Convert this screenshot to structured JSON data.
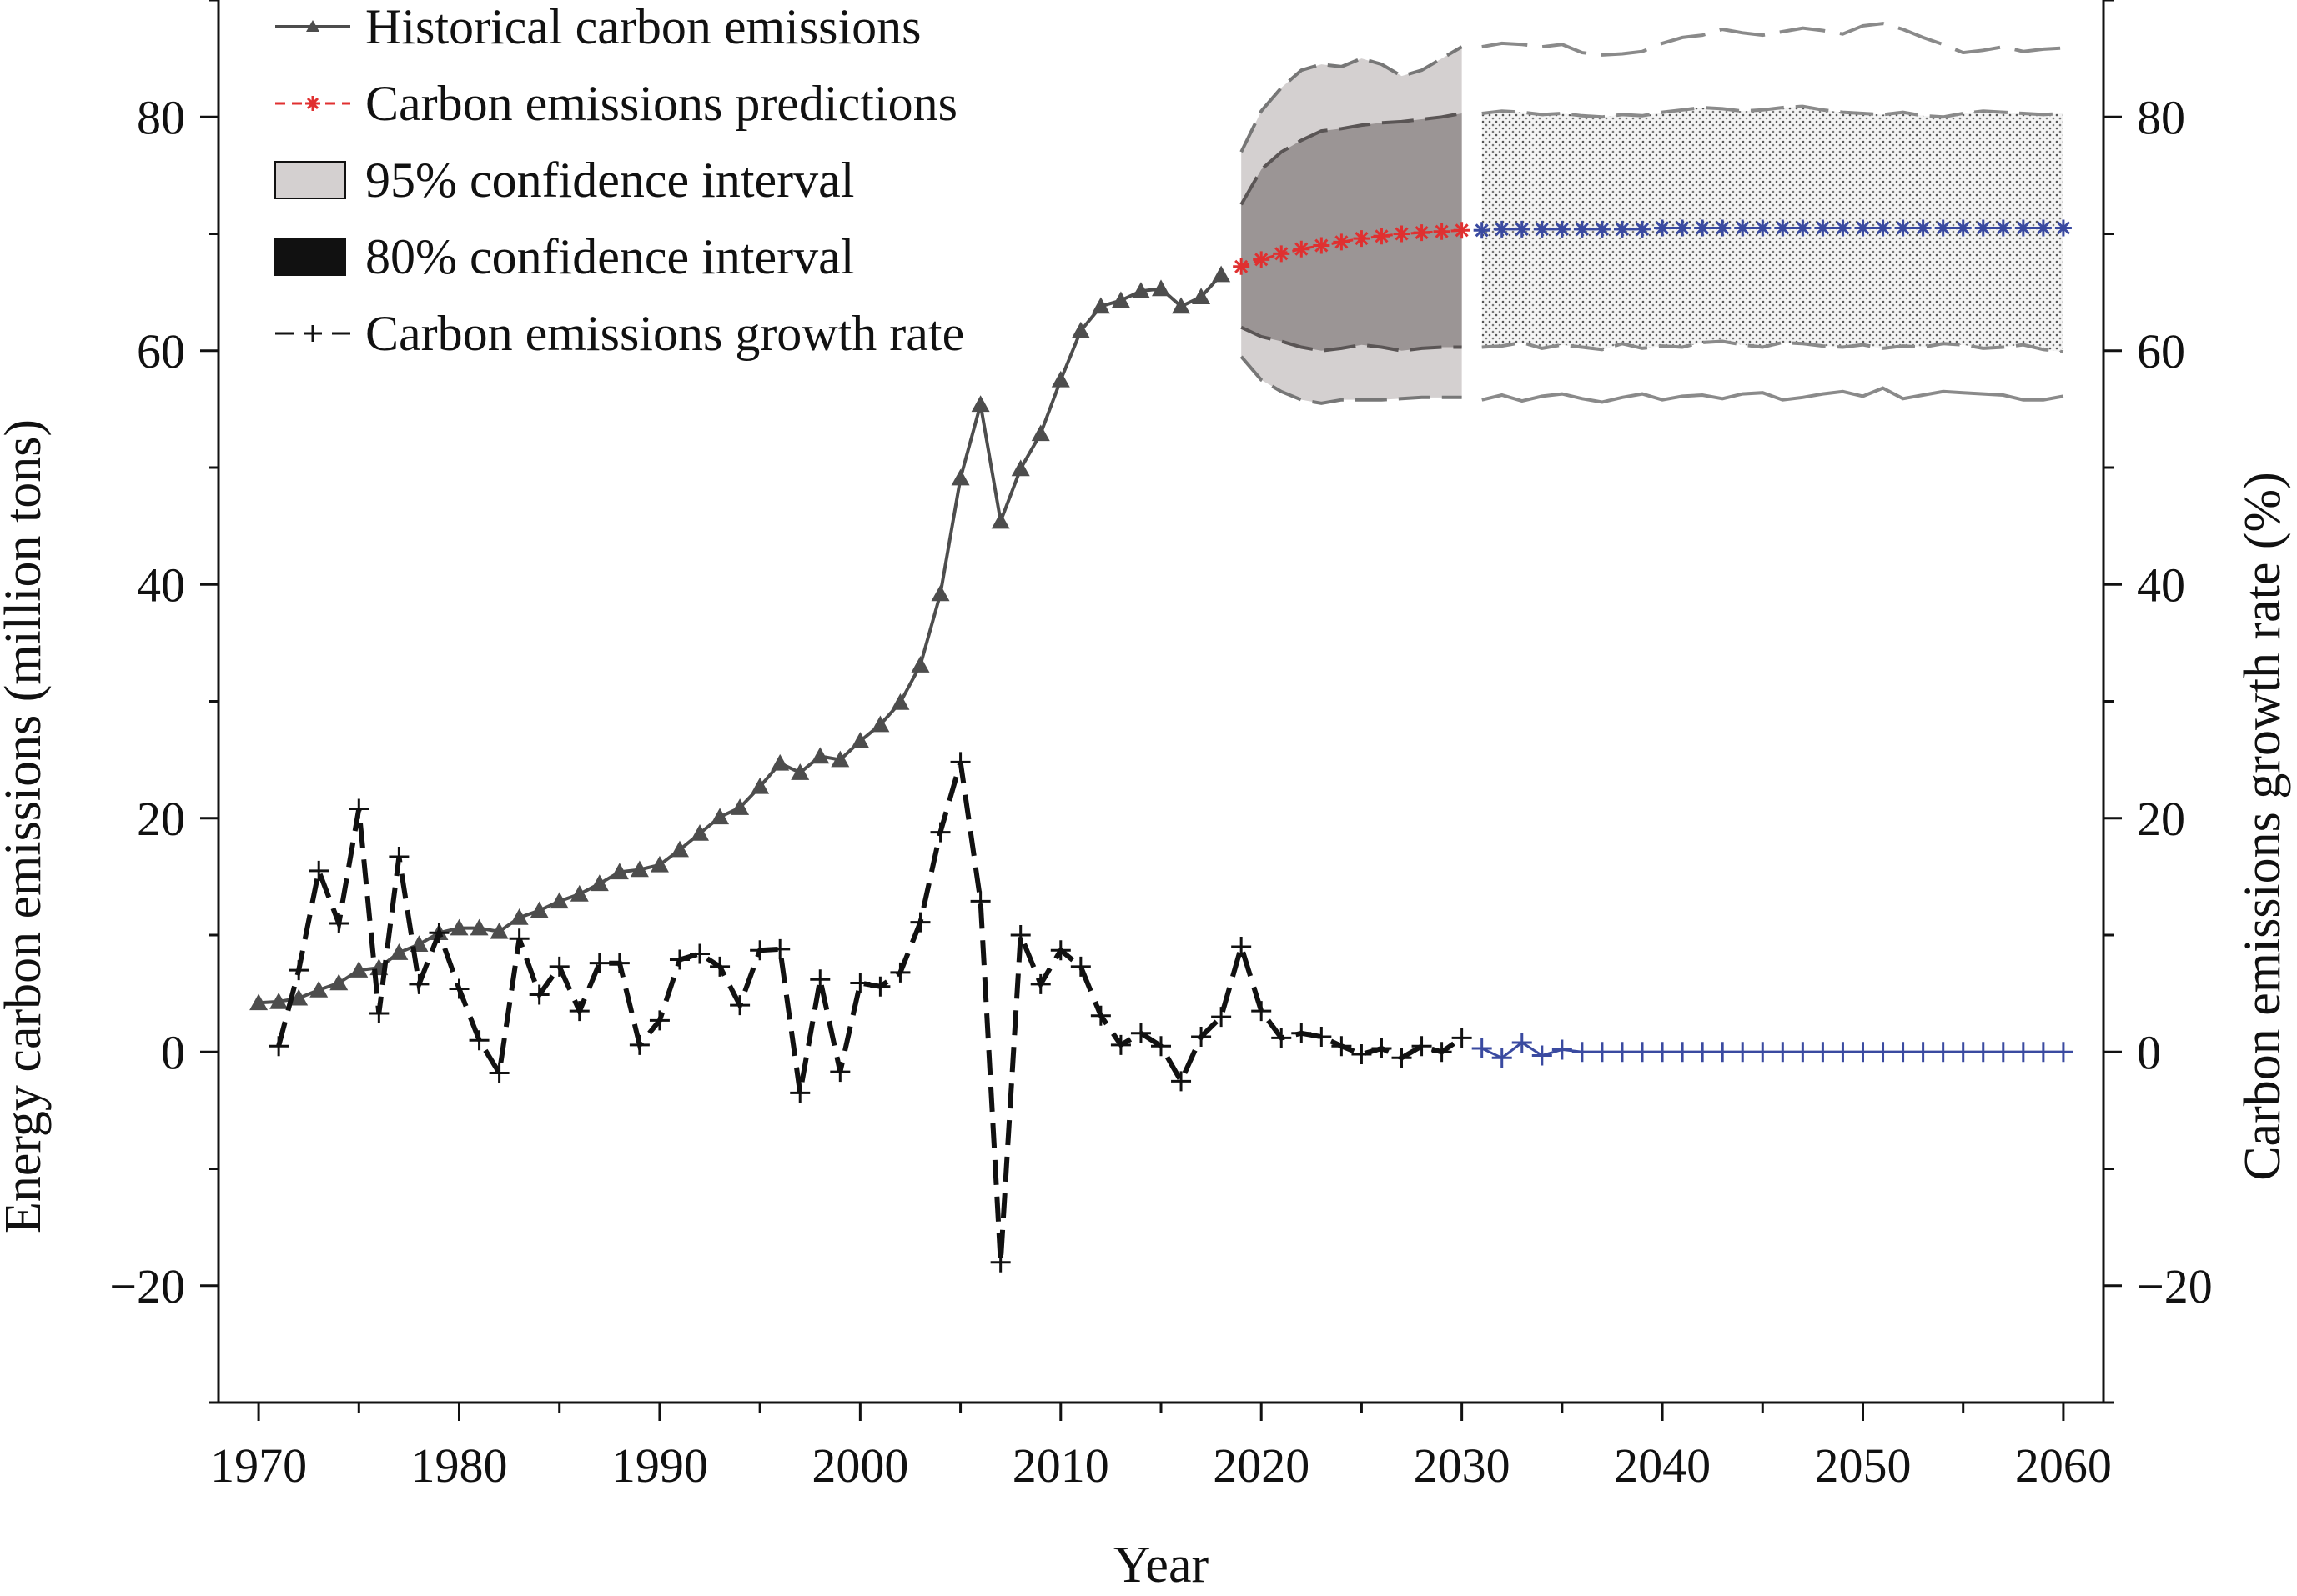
{
  "chart_data": {
    "type": "line",
    "xlabel": "Year",
    "ylabel_left": "Energy carbon emissions (million tons)",
    "ylabel_right": "Carbon emissions growth rate (%)",
    "xlim": [
      1968,
      2062
    ],
    "ylim_left": [
      -30,
      90
    ],
    "ylim_right": [
      -30,
      90
    ],
    "x_ticks": [
      1970,
      1980,
      1990,
      2000,
      2010,
      2020,
      2030,
      2040,
      2050,
      2060
    ],
    "y_ticks_left": [
      -20,
      0,
      20,
      40,
      60,
      80
    ],
    "y_ticks_right": [
      -20,
      0,
      20,
      40,
      60,
      80
    ],
    "legend": [
      {
        "key": "historical",
        "label": "Historical carbon emissions"
      },
      {
        "key": "predictions",
        "label": "Carbon emissions predictions"
      },
      {
        "key": "ci95",
        "label": "95% confidence interval"
      },
      {
        "key": "ci80",
        "label": "80% confidence interval"
      },
      {
        "key": "growth",
        "label": "Carbon emissions growth rate"
      }
    ],
    "colors": {
      "historical": "#4d4d4d",
      "predictions_near": "#e03030",
      "predictions_far": "#3a4aa0",
      "ci95_fill": "#d4d0d0",
      "ci80_fill": "#9b9595",
      "growth": "#111111",
      "growth_far": "#3a4aa0",
      "band_edge": "#777777"
    },
    "historical": {
      "name": "Historical carbon emissions",
      "x": [
        1970,
        1971,
        1972,
        1973,
        1974,
        1975,
        1976,
        1977,
        1978,
        1979,
        1980,
        1981,
        1982,
        1983,
        1984,
        1985,
        1986,
        1987,
        1988,
        1989,
        1990,
        1991,
        1992,
        1993,
        1994,
        1995,
        1996,
        1997,
        1998,
        1999,
        2000,
        2001,
        2002,
        2003,
        2004,
        2005,
        2006,
        2007,
        2008,
        2009,
        2010,
        2011,
        2012,
        2013,
        2014,
        2015,
        2016,
        2017,
        2018
      ],
      "y": [
        4.2,
        4.3,
        4.6,
        5.3,
        5.9,
        7.0,
        7.2,
        8.5,
        9.2,
        10.2,
        10.6,
        10.6,
        10.3,
        11.5,
        12.1,
        12.9,
        13.5,
        14.4,
        15.4,
        15.6,
        16.0,
        17.3,
        18.7,
        20.1,
        20.9,
        22.7,
        24.7,
        23.9,
        25.3,
        25.0,
        26.6,
        28.0,
        29.9,
        33.1,
        39.2,
        49.1,
        55.4,
        45.4,
        49.9,
        52.9,
        57.5,
        61.7,
        63.8,
        64.3,
        65.1,
        65.3,
        63.8,
        64.6,
        66.5
      ]
    },
    "predictions": {
      "name": "Carbon emissions predictions",
      "x": [
        2019,
        2020,
        2021,
        2022,
        2023,
        2024,
        2025,
        2026,
        2027,
        2028,
        2029,
        2030,
        2031,
        2032,
        2033,
        2034,
        2035,
        2036,
        2037,
        2038,
        2039,
        2040,
        2041,
        2042,
        2043,
        2044,
        2045,
        2046,
        2047,
        2048,
        2049,
        2050,
        2051,
        2052,
        2053,
        2054,
        2055,
        2056,
        2057,
        2058,
        2059,
        2060
      ],
      "y": [
        67.2,
        67.8,
        68.3,
        68.7,
        69.0,
        69.3,
        69.6,
        69.8,
        70.0,
        70.1,
        70.2,
        70.3,
        70.3,
        70.4,
        70.4,
        70.4,
        70.4,
        70.4,
        70.4,
        70.4,
        70.4,
        70.5,
        70.5,
        70.5,
        70.5,
        70.5,
        70.5,
        70.5,
        70.5,
        70.5,
        70.5,
        70.5,
        70.5,
        70.5,
        70.5,
        70.5,
        70.5,
        70.5,
        70.5,
        70.5,
        70.5,
        70.5
      ]
    },
    "ci95_band": {
      "name": "95% confidence interval",
      "x": [
        2019,
        2020,
        2021,
        2022,
        2023,
        2024,
        2025,
        2026,
        2027,
        2028,
        2029,
        2030
      ],
      "upper": [
        77.0,
        80.5,
        82.5,
        84.0,
        84.5,
        84.3,
        85.0,
        84.5,
        83.5,
        84.0,
        85.0,
        86.0
      ],
      "lower": [
        59.5,
        57.5,
        56.5,
        55.8,
        55.5,
        55.8,
        55.8,
        55.8,
        55.9,
        56.0,
        56.0,
        56.0
      ]
    },
    "ci80_band": {
      "name": "80% confidence interval",
      "x": [
        2019,
        2020,
        2021,
        2022,
        2023,
        2024,
        2025,
        2026,
        2027,
        2028,
        2029,
        2030
      ],
      "upper": [
        72.5,
        75.5,
        77.0,
        78.0,
        78.8,
        79.0,
        79.3,
        79.5,
        79.6,
        79.8,
        80.0,
        80.3
      ],
      "lower": [
        62.0,
        61.2,
        60.8,
        60.3,
        60.0,
        60.2,
        60.5,
        60.3,
        60.0,
        60.2,
        60.3,
        60.3
      ]
    },
    "future_band_95": {
      "x": [
        2031,
        2032,
        2033,
        2034,
        2035,
        2036,
        2037,
        2038,
        2039,
        2040,
        2041,
        2042,
        2043,
        2044,
        2045,
        2046,
        2047,
        2048,
        2049,
        2050,
        2051,
        2052,
        2053,
        2054,
        2055,
        2056,
        2057,
        2058,
        2059,
        2060
      ],
      "upper": [
        86.0,
        86.3,
        86.2,
        86.0,
        86.2,
        85.5,
        85.3,
        85.4,
        85.6,
        86.3,
        86.8,
        87.0,
        87.5,
        87.2,
        87.0,
        87.3,
        87.6,
        87.4,
        87.1,
        87.8,
        88.0,
        87.5,
        86.8,
        86.2,
        85.5,
        85.7,
        86.0,
        85.6,
        85.8,
        85.9
      ],
      "lower": [
        55.8,
        56.2,
        55.7,
        56.1,
        56.3,
        55.9,
        55.6,
        56.0,
        56.3,
        55.8,
        56.1,
        56.2,
        55.9,
        56.3,
        56.4,
        55.8,
        56.0,
        56.3,
        56.5,
        56.1,
        56.8,
        55.9,
        56.2,
        56.5,
        56.4,
        56.3,
        56.2,
        55.8,
        55.8,
        56.1
      ]
    },
    "future_band_80": {
      "x": [
        2031,
        2032,
        2033,
        2034,
        2035,
        2036,
        2037,
        2038,
        2039,
        2040,
        2041,
        2042,
        2043,
        2044,
        2045,
        2046,
        2047,
        2048,
        2049,
        2050,
        2051,
        2052,
        2053,
        2054,
        2055,
        2056,
        2057,
        2058,
        2059,
        2060
      ],
      "upper": [
        80.3,
        80.5,
        80.4,
        80.2,
        80.3,
        80.1,
        80.0,
        80.2,
        80.1,
        80.4,
        80.6,
        80.8,
        80.7,
        80.5,
        80.6,
        80.8,
        80.9,
        80.6,
        80.4,
        80.3,
        80.2,
        80.4,
        80.1,
        80.0,
        80.3,
        80.5,
        80.4,
        80.3,
        80.2,
        80.3
      ],
      "lower": [
        60.3,
        60.4,
        60.7,
        60.2,
        60.5,
        60.3,
        60.1,
        60.6,
        60.2,
        60.4,
        60.3,
        60.7,
        60.8,
        60.5,
        60.3,
        60.7,
        60.6,
        60.4,
        60.3,
        60.5,
        60.2,
        60.4,
        60.3,
        60.6,
        60.5,
        60.2,
        60.3,
        60.5,
        60.1,
        59.9
      ]
    },
    "growth": {
      "name": "Carbon emissions growth rate",
      "x": [
        1971,
        1972,
        1973,
        1974,
        1975,
        1976,
        1977,
        1978,
        1979,
        1980,
        1981,
        1982,
        1983,
        1984,
        1985,
        1986,
        1987,
        1988,
        1989,
        1990,
        1991,
        1992,
        1993,
        1994,
        1995,
        1996,
        1997,
        1998,
        1999,
        2000,
        2001,
        2002,
        2003,
        2004,
        2005,
        2006,
        2007,
        2008,
        2009,
        2010,
        2011,
        2012,
        2013,
        2014,
        2015,
        2016,
        2017,
        2018,
        2019,
        2020,
        2021,
        2022,
        2023,
        2024,
        2025,
        2026,
        2027,
        2028,
        2029,
        2030
      ],
      "y": [
        0.5,
        7.0,
        15.5,
        11.0,
        20.8,
        3.3,
        16.7,
        5.8,
        10.2,
        5.4,
        1.0,
        -1.8,
        9.7,
        4.9,
        7.3,
        3.5,
        7.6,
        7.6,
        0.6,
        2.7,
        7.9,
        8.4,
        7.3,
        4.0,
        8.7,
        8.8,
        -3.5,
        6.2,
        -1.7,
        5.9,
        5.6,
        6.8,
        11.1,
        18.8,
        24.8,
        12.9,
        -18.0,
        10.0,
        5.8,
        8.7,
        7.3,
        3.1,
        0.6,
        1.6,
        0.5,
        -2.5,
        1.3,
        3.0,
        9.0,
        3.5,
        1.2,
        1.6,
        1.3,
        0.5,
        -0.2,
        0.3,
        -0.5,
        0.5,
        0.0,
        1.2
      ]
    },
    "growth_future": {
      "x": [
        2031,
        2032,
        2033,
        2034,
        2035,
        2036,
        2037,
        2038,
        2039,
        2040,
        2041,
        2042,
        2043,
        2044,
        2045,
        2046,
        2047,
        2048,
        2049,
        2050,
        2051,
        2052,
        2053,
        2054,
        2055,
        2056,
        2057,
        2058,
        2059,
        2060
      ],
      "y": [
        0.3,
        -0.5,
        0.8,
        -0.3,
        0.2,
        0,
        0,
        0,
        0,
        0,
        0,
        0,
        0,
        0,
        0,
        0,
        0,
        0,
        0,
        0,
        0,
        0,
        0,
        0,
        0,
        0,
        0,
        0,
        0,
        0
      ]
    }
  }
}
